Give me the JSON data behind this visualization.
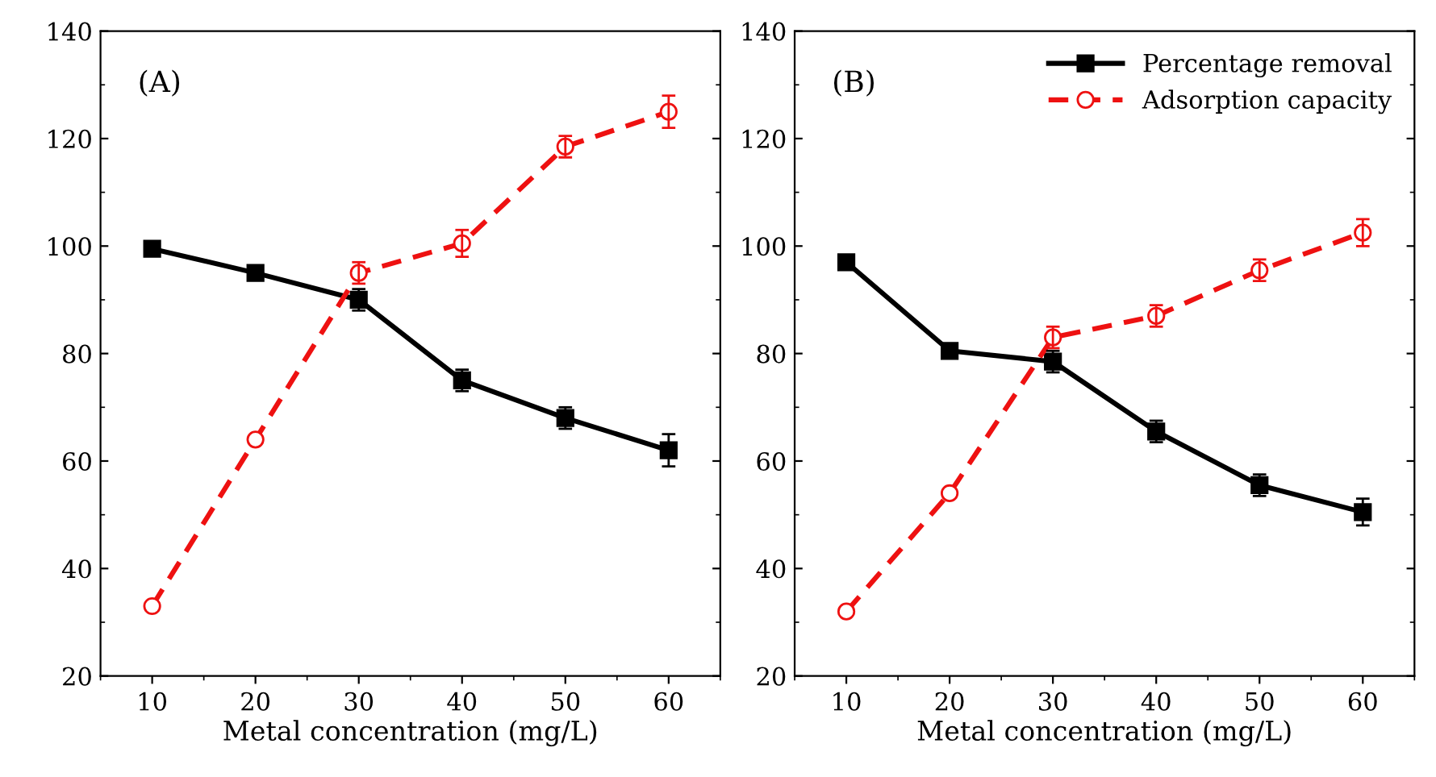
{
  "chart_data": [
    {
      "type": "line",
      "title": "(A)",
      "xlabel": "Metal concentration (mg/L)",
      "x": [
        10,
        20,
        30,
        40,
        50,
        60
      ],
      "xlim": [
        5,
        65
      ],
      "xticks": [
        10,
        20,
        30,
        40,
        50,
        60
      ],
      "ylim": [
        20,
        140
      ],
      "yticks": [
        20,
        40,
        60,
        80,
        100,
        120,
        140
      ],
      "grid": false,
      "legend": false,
      "series": [
        {
          "color": "#000000",
          "marker": "square",
          "line_style": "solid",
          "values": [
            99.5,
            95,
            90,
            75,
            68,
            62
          ],
          "errors": [
            null,
            null,
            2,
            2,
            2,
            3
          ]
        },
        {
          "color": "#ee1111",
          "marker": "circle",
          "line_style": "dashed",
          "values": [
            33,
            64,
            95,
            100.5,
            118.5,
            125
          ],
          "errors": [
            null,
            null,
            2,
            2.5,
            2,
            3
          ]
        }
      ]
    },
    {
      "type": "line",
      "title": "(B)",
      "xlabel": "Metal concentration (mg/L)",
      "x": [
        10,
        20,
        30,
        40,
        50,
        60
      ],
      "xlim": [
        5,
        65
      ],
      "xticks": [
        10,
        20,
        30,
        40,
        50,
        60
      ],
      "ylim": [
        20,
        140
      ],
      "yticks": [
        20,
        40,
        60,
        80,
        100,
        120,
        140
      ],
      "grid": false,
      "legend": "top right",
      "series": [
        {
          "name": "Percentage removal",
          "color": "#000000",
          "marker": "square",
          "line_style": "solid",
          "values": [
            97,
            80.5,
            78.5,
            65.5,
            55.5,
            50.5
          ],
          "errors": [
            null,
            null,
            2,
            2,
            2,
            2.5
          ]
        },
        {
          "name": "Adsorption capacity",
          "color": "#ee1111",
          "marker": "circle",
          "line_style": "dashed",
          "values": [
            32,
            54,
            83,
            87,
            95.5,
            102.5
          ],
          "errors": [
            null,
            null,
            2,
            2,
            2,
            2.5
          ]
        }
      ]
    }
  ]
}
